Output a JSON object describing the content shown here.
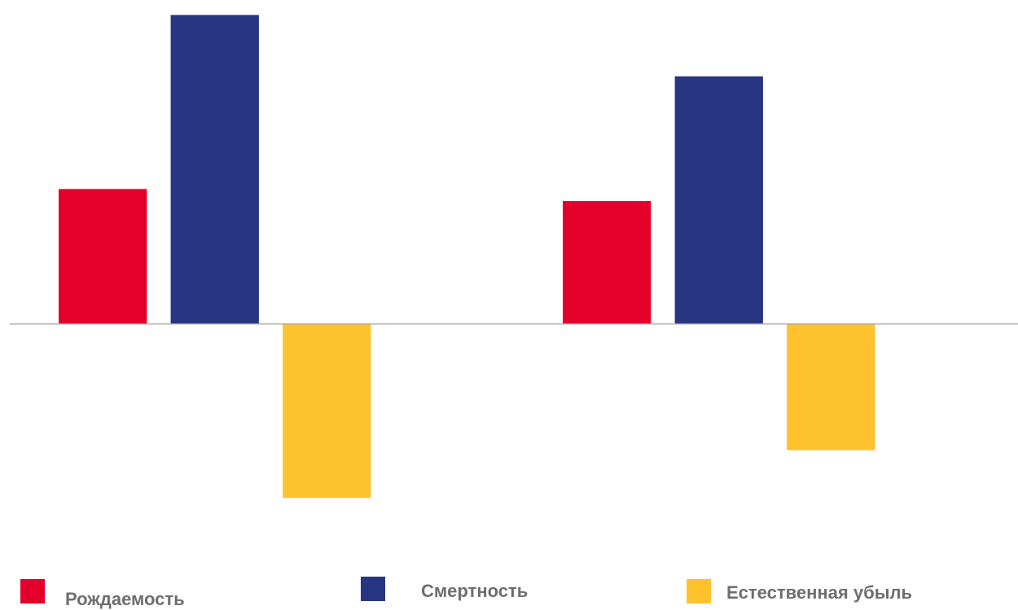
{
  "chart_data": {
    "type": "bar",
    "categories": [
      "",
      ""
    ],
    "series": [
      {
        "name": "Рождаемость",
        "values": [
          7.9,
          7.2
        ],
        "color": "#e4002b"
      },
      {
        "name": "Смертность",
        "values": [
          18.1,
          14.5
        ],
        "color": "#283583"
      },
      {
        "name": "Естественная убыль",
        "values": [
          -10.2,
          -7.4
        ],
        "color": "#fec22d"
      }
    ],
    "ylim": [
      -12,
      18.5
    ],
    "grid": false,
    "axes_visible": false,
    "legend": "bottom"
  }
}
